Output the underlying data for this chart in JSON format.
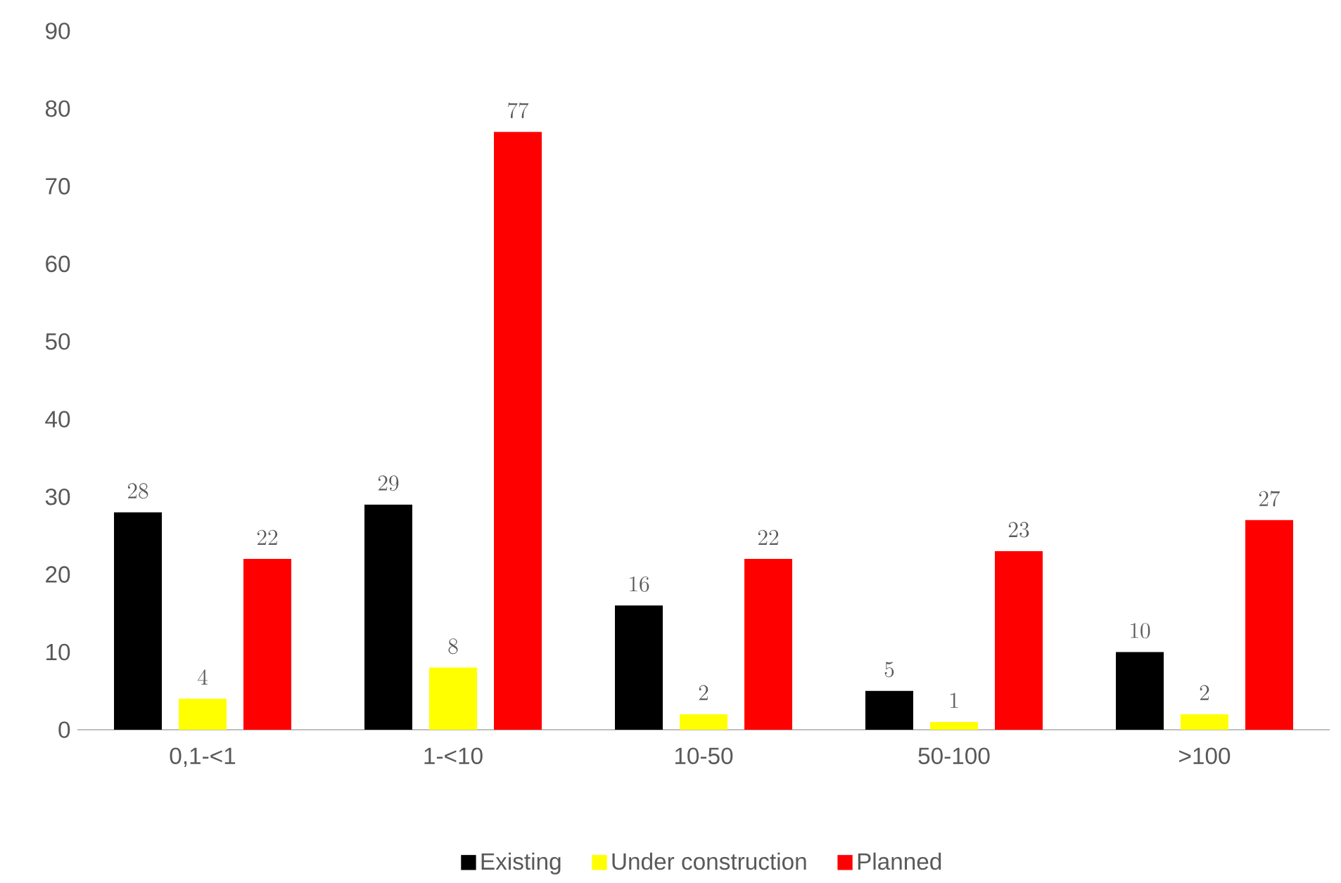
{
  "chart_data": {
    "type": "bar",
    "categories": [
      "0,1-<1",
      "1-<10",
      "10-50",
      "50-100",
      ">100"
    ],
    "series": [
      {
        "name": "Existing",
        "color": "#000000",
        "values": [
          28,
          29,
          16,
          5,
          10
        ]
      },
      {
        "name": "Under construction",
        "color": "#ffff00",
        "values": [
          4,
          8,
          2,
          1,
          2
        ]
      },
      {
        "name": "Planned",
        "color": "#ff0000",
        "values": [
          22,
          77,
          22,
          23,
          27
        ]
      }
    ],
    "ylim": [
      0,
      90
    ],
    "yticks": [
      0,
      10,
      20,
      30,
      40,
      50,
      60,
      70,
      80,
      90
    ],
    "grid": false,
    "legend": "bottom",
    "data_labels": true
  }
}
